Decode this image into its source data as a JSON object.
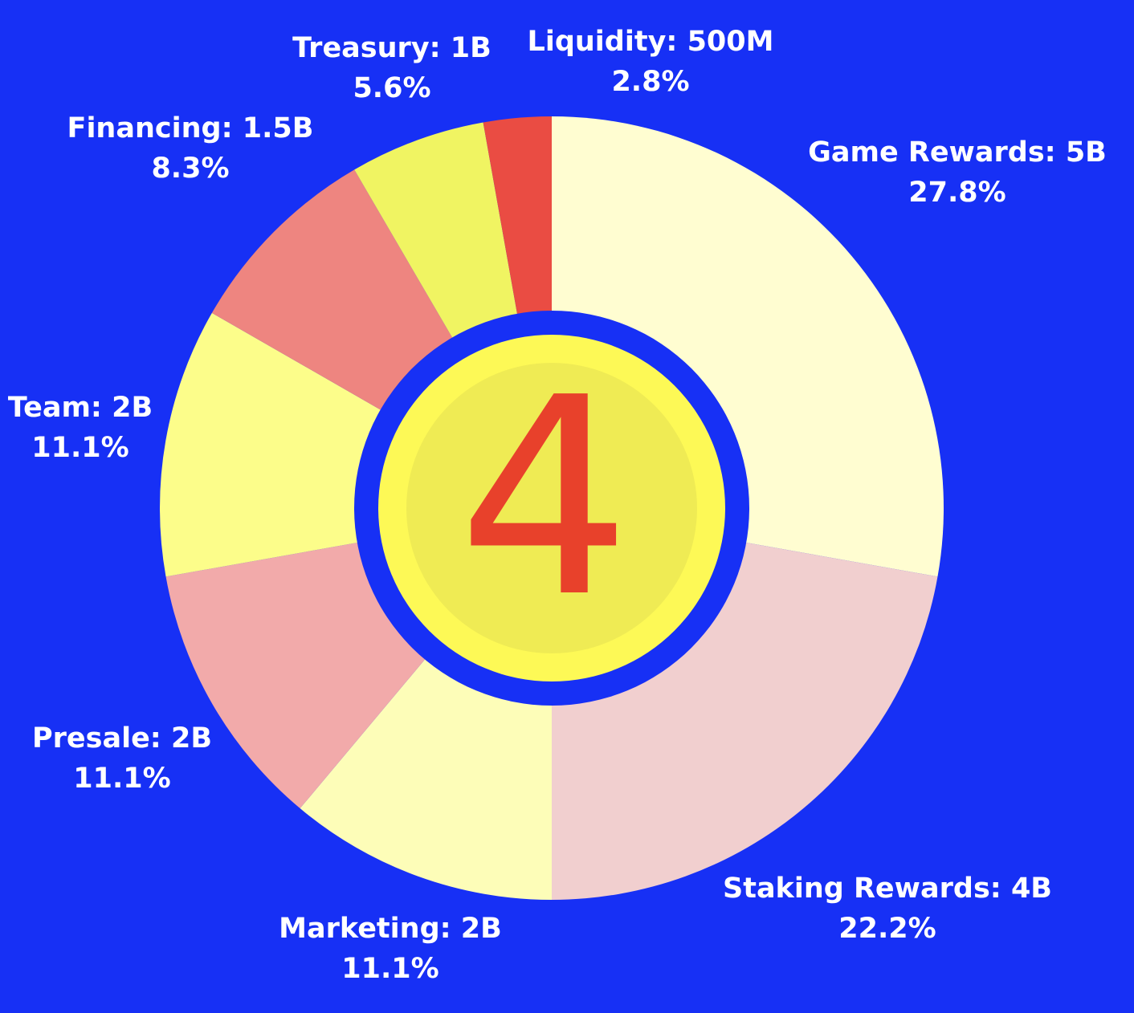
{
  "chart_data": {
    "type": "pie",
    "center_text": "4",
    "slices": [
      {
        "name": "Game Rewards",
        "amount": "5B",
        "percent": "27.8%",
        "value": 27.8,
        "color": "#fffdd1"
      },
      {
        "name": "Staking Rewards",
        "amount": "4B",
        "percent": "22.2%",
        "value": 22.2,
        "color": "#f1cfcf"
      },
      {
        "name": "Marketing",
        "amount": "2B",
        "percent": "11.1%",
        "value": 11.1,
        "color": "#fdfdb8"
      },
      {
        "name": "Presale",
        "amount": "2B",
        "percent": "11.1%",
        "value": 11.1,
        "color": "#f2aaaa"
      },
      {
        "name": "Team",
        "amount": "2B",
        "percent": "11.1%",
        "value": 11.1,
        "color": "#fcfd8a"
      },
      {
        "name": "Financing",
        "amount": "1.5B",
        "percent": "8.3%",
        "value": 8.3,
        "color": "#ee8580"
      },
      {
        "name": "Treasury",
        "amount": "1B",
        "percent": "5.6%",
        "value": 5.6,
        "color": "#f0f462"
      },
      {
        "name": "Liquidity",
        "amount": "500M",
        "percent": "2.8%",
        "value": 2.8,
        "color": "#ea4c43"
      }
    ],
    "colors": {
      "background": "#1730f5",
      "center_ring": "#1730f5",
      "center_outer": "#fdf956",
      "center_inner": "#efeb54",
      "center_digit": "#e8412b"
    }
  }
}
